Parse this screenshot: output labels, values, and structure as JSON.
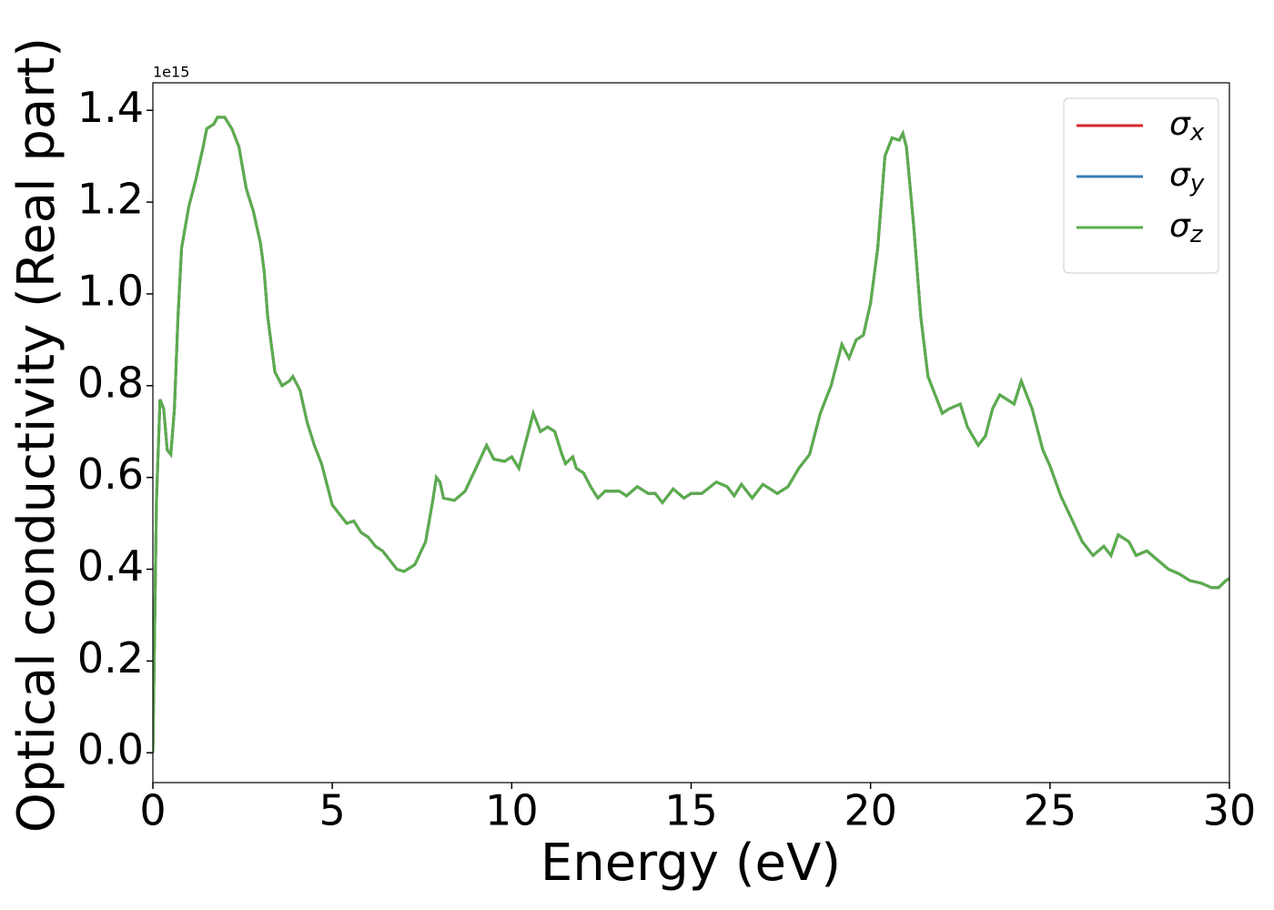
{
  "chart_data": {
    "type": "line",
    "xlabel": "Energy (eV)",
    "ylabel": "Optical conductivity (Real part)",
    "y_offset_label": "1e15",
    "xlim": [
      0,
      30
    ],
    "xticks": [
      0,
      5,
      10,
      15,
      20,
      25,
      30
    ],
    "ylim": [
      -0.065,
      1.46
    ],
    "yticks": [
      {
        "value": 0,
        "label": "0.0"
      },
      0.2,
      0.4,
      0.6,
      0.8,
      {
        "value": 1,
        "label": "1.0"
      },
      1.2,
      1.4
    ],
    "legend": "upper right",
    "x": [
      0,
      0.1,
      0.2,
      0.3,
      0.4,
      0.5,
      0.6,
      0.7,
      0.8,
      1.0,
      1.2,
      1.4,
      1.5,
      1.7,
      1.8,
      2.0,
      2.2,
      2.4,
      2.6,
      2.8,
      3.0,
      3.1,
      3.2,
      3.4,
      3.6,
      3.8,
      3.9,
      4.1,
      4.3,
      4.5,
      4.7,
      4.8,
      5.0,
      5.2,
      5.4,
      5.6,
      5.8,
      6.0,
      6.2,
      6.4,
      6.6,
      6.8,
      7.0,
      7.3,
      7.6,
      7.8,
      7.9,
      8.0,
      8.1,
      8.4,
      8.7,
      9.0,
      9.3,
      9.5,
      9.8,
      10.0,
      10.2,
      10.4,
      10.6,
      10.8,
      11.0,
      11.2,
      11.4,
      11.5,
      11.7,
      11.8,
      12.0,
      12.2,
      12.4,
      12.6,
      13.0,
      13.2,
      13.5,
      13.8,
      14.0,
      14.2,
      14.5,
      14.8,
      15.0,
      15.3,
      15.7,
      16.0,
      16.2,
      16.4,
      16.7,
      17.0,
      17.4,
      17.7,
      18.0,
      18.3,
      18.6,
      18.9,
      19.2,
      19.4,
      19.6,
      19.8,
      20.0,
      20.2,
      20.4,
      20.6,
      20.8,
      20.9,
      21.0,
      21.2,
      21.4,
      21.6,
      21.8,
      22.0,
      22.2,
      22.5,
      22.7,
      23.0,
      23.2,
      23.4,
      23.6,
      23.8,
      24.0,
      24.2,
      24.5,
      24.8,
      25.0,
      25.3,
      25.6,
      25.9,
      26.2,
      26.5,
      26.7,
      26.9,
      27.2,
      27.4,
      27.7,
      28.0,
      28.3,
      28.6,
      28.9,
      29.2,
      29.5,
      29.7,
      29.9,
      30.0
    ],
    "series": [
      {
        "name": "σx",
        "color": "#d62728",
        "values": [
          0.0,
          0.55,
          0.77,
          0.75,
          0.66,
          0.65,
          0.75,
          0.95,
          1.1,
          1.19,
          1.25,
          1.32,
          1.36,
          1.37,
          1.385,
          1.385,
          1.36,
          1.32,
          1.23,
          1.18,
          1.11,
          1.05,
          0.95,
          0.83,
          0.8,
          0.81,
          0.82,
          0.79,
          0.72,
          0.67,
          0.63,
          0.6,
          0.54,
          0.52,
          0.5,
          0.505,
          0.48,
          0.47,
          0.45,
          0.44,
          0.42,
          0.4,
          0.395,
          0.41,
          0.46,
          0.55,
          0.6,
          0.59,
          0.555,
          0.55,
          0.57,
          0.62,
          0.67,
          0.64,
          0.635,
          0.645,
          0.62,
          0.68,
          0.74,
          0.7,
          0.71,
          0.7,
          0.65,
          0.63,
          0.645,
          0.62,
          0.61,
          0.58,
          0.555,
          0.57,
          0.57,
          0.56,
          0.58,
          0.565,
          0.565,
          0.545,
          0.575,
          0.555,
          0.565,
          0.565,
          0.59,
          0.58,
          0.56,
          0.585,
          0.555,
          0.585,
          0.565,
          0.58,
          0.62,
          0.65,
          0.74,
          0.8,
          0.89,
          0.86,
          0.9,
          0.91,
          0.98,
          1.1,
          1.3,
          1.34,
          1.335,
          1.35,
          1.32,
          1.15,
          0.95,
          0.82,
          0.78,
          0.74,
          0.75,
          0.76,
          0.71,
          0.67,
          0.69,
          0.75,
          0.78,
          0.77,
          0.76,
          0.81,
          0.75,
          0.66,
          0.625,
          0.56,
          0.51,
          0.46,
          0.43,
          0.45,
          0.43,
          0.475,
          0.46,
          0.43,
          0.44,
          0.42,
          0.4,
          0.39,
          0.375,
          0.37,
          0.36,
          0.36,
          0.375,
          0.38
        ]
      },
      {
        "name": "σy",
        "color": "#3a7db5",
        "values": [
          0.0,
          0.55,
          0.77,
          0.75,
          0.66,
          0.65,
          0.75,
          0.95,
          1.1,
          1.19,
          1.25,
          1.32,
          1.36,
          1.37,
          1.385,
          1.385,
          1.36,
          1.32,
          1.23,
          1.18,
          1.11,
          1.05,
          0.95,
          0.83,
          0.8,
          0.81,
          0.82,
          0.79,
          0.72,
          0.67,
          0.63,
          0.6,
          0.54,
          0.52,
          0.5,
          0.505,
          0.48,
          0.47,
          0.45,
          0.44,
          0.42,
          0.4,
          0.395,
          0.41,
          0.46,
          0.55,
          0.6,
          0.59,
          0.555,
          0.55,
          0.57,
          0.62,
          0.67,
          0.64,
          0.635,
          0.645,
          0.62,
          0.68,
          0.74,
          0.7,
          0.71,
          0.7,
          0.65,
          0.63,
          0.645,
          0.62,
          0.61,
          0.58,
          0.555,
          0.57,
          0.57,
          0.56,
          0.58,
          0.565,
          0.565,
          0.545,
          0.575,
          0.555,
          0.565,
          0.565,
          0.59,
          0.58,
          0.56,
          0.585,
          0.555,
          0.585,
          0.565,
          0.58,
          0.62,
          0.65,
          0.74,
          0.8,
          0.89,
          0.86,
          0.9,
          0.91,
          0.98,
          1.1,
          1.3,
          1.34,
          1.335,
          1.35,
          1.32,
          1.15,
          0.95,
          0.82,
          0.78,
          0.74,
          0.75,
          0.76,
          0.71,
          0.67,
          0.69,
          0.75,
          0.78,
          0.77,
          0.76,
          0.81,
          0.75,
          0.66,
          0.625,
          0.56,
          0.51,
          0.46,
          0.43,
          0.45,
          0.43,
          0.475,
          0.46,
          0.43,
          0.44,
          0.42,
          0.4,
          0.39,
          0.375,
          0.37,
          0.36,
          0.36,
          0.375,
          0.38
        ]
      },
      {
        "name": "σz",
        "color": "#5aad4b",
        "values": [
          0.0,
          0.55,
          0.77,
          0.75,
          0.66,
          0.65,
          0.75,
          0.95,
          1.1,
          1.19,
          1.25,
          1.32,
          1.36,
          1.37,
          1.385,
          1.385,
          1.36,
          1.32,
          1.23,
          1.18,
          1.11,
          1.05,
          0.95,
          0.83,
          0.8,
          0.81,
          0.82,
          0.79,
          0.72,
          0.67,
          0.63,
          0.6,
          0.54,
          0.52,
          0.5,
          0.505,
          0.48,
          0.47,
          0.45,
          0.44,
          0.42,
          0.4,
          0.395,
          0.41,
          0.46,
          0.55,
          0.6,
          0.59,
          0.555,
          0.55,
          0.57,
          0.62,
          0.67,
          0.64,
          0.635,
          0.645,
          0.62,
          0.68,
          0.74,
          0.7,
          0.71,
          0.7,
          0.65,
          0.63,
          0.645,
          0.62,
          0.61,
          0.58,
          0.555,
          0.57,
          0.57,
          0.56,
          0.58,
          0.565,
          0.565,
          0.545,
          0.575,
          0.555,
          0.565,
          0.565,
          0.59,
          0.58,
          0.56,
          0.585,
          0.555,
          0.585,
          0.565,
          0.58,
          0.62,
          0.65,
          0.74,
          0.8,
          0.89,
          0.86,
          0.9,
          0.91,
          0.98,
          1.1,
          1.3,
          1.34,
          1.335,
          1.35,
          1.32,
          1.15,
          0.95,
          0.82,
          0.78,
          0.74,
          0.75,
          0.76,
          0.71,
          0.67,
          0.69,
          0.75,
          0.78,
          0.77,
          0.76,
          0.81,
          0.75,
          0.66,
          0.625,
          0.56,
          0.51,
          0.46,
          0.43,
          0.45,
          0.43,
          0.475,
          0.46,
          0.43,
          0.44,
          0.42,
          0.4,
          0.39,
          0.375,
          0.37,
          0.36,
          0.36,
          0.375,
          0.38
        ]
      }
    ]
  }
}
